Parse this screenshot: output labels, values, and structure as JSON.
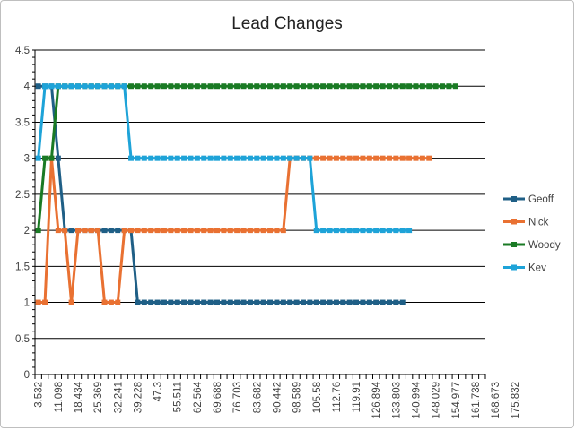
{
  "chart_data": {
    "type": "line",
    "title": "Lead Changes",
    "xlabel": "",
    "ylabel": "",
    "ylim": [
      0,
      4.5
    ],
    "yticks": [
      "0",
      "0.5",
      "1",
      "1.5",
      "2",
      "2.5",
      "3",
      "3.5",
      "4",
      "4.5"
    ],
    "xtick_labels": [
      "3.532",
      "11.098",
      "18.434",
      "25.369",
      "32.241",
      "39.228",
      "47.3",
      "55.511",
      "62.564",
      "69.688",
      "76.703",
      "83.682",
      "90.442",
      "98.589",
      "105.58",
      "112.76",
      "119.91",
      "126.894",
      "133.803",
      "140.994",
      "148.029",
      "154.977",
      "161.738",
      "168.673",
      "175.832"
    ],
    "grid": "horizontal",
    "legend_position": "right",
    "series": [
      {
        "name": "Geoff",
        "color": "#1f5f86",
        "segments": [
          [
            0,
            4
          ],
          [
            2,
            4
          ],
          [
            3,
            3
          ],
          [
            4,
            2
          ],
          [
            10,
            2
          ],
          [
            11,
            2
          ],
          [
            14,
            2
          ],
          [
            15,
            1
          ],
          [
            55,
            1
          ]
        ]
      },
      {
        "name": "Nick",
        "color": "#e97132",
        "segments": [
          [
            0,
            1
          ],
          [
            2,
            3
          ],
          [
            3,
            2
          ],
          [
            4,
            2
          ],
          [
            5,
            1
          ],
          [
            6,
            2
          ],
          [
            9,
            2
          ],
          [
            10,
            1
          ],
          [
            12,
            1
          ],
          [
            13,
            2
          ],
          [
            37,
            2
          ],
          [
            38,
            3
          ],
          [
            59,
            3
          ]
        ]
      },
      {
        "name": "Woody",
        "color": "#1a7a24",
        "segments": [
          [
            0,
            2
          ],
          [
            1,
            3
          ],
          [
            2,
            3
          ],
          [
            3,
            4
          ],
          [
            63,
            4
          ]
        ]
      },
      {
        "name": "Kev",
        "color": "#1ea3d8",
        "segments": [
          [
            0,
            3
          ],
          [
            1,
            4
          ],
          [
            13,
            4
          ],
          [
            14,
            3
          ],
          [
            41,
            3
          ],
          [
            42,
            2
          ],
          [
            56,
            2
          ]
        ]
      }
    ]
  }
}
